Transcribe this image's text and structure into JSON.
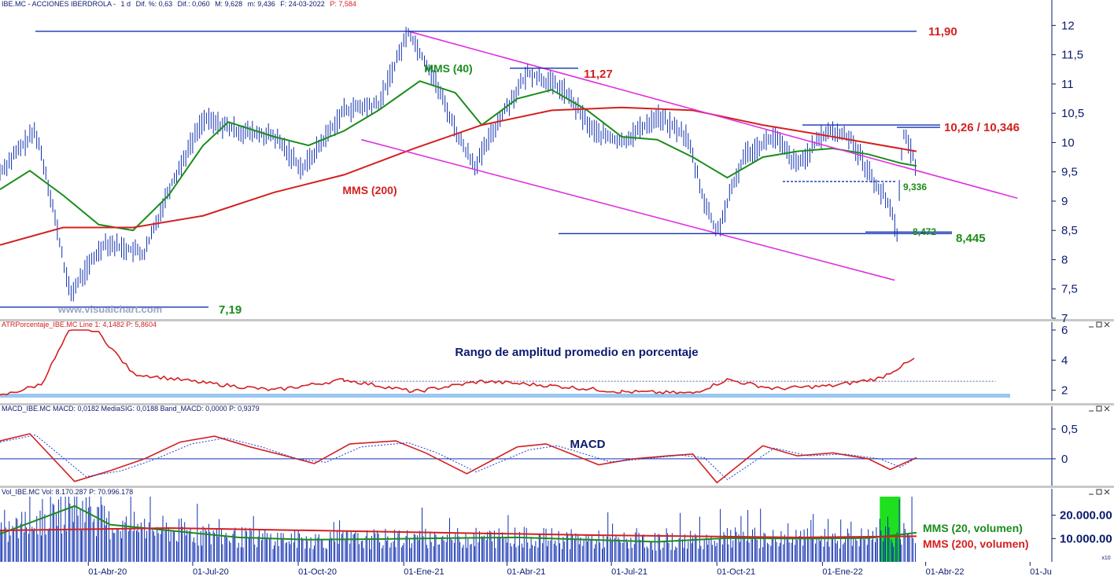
{
  "panels": {
    "price": {
      "header": {
        "symbol": "IBE.MC - ACCIONES IBERDROLA -",
        "period": "1 d",
        "dif_pct": "Dif. %: 0,63",
        "dif": "Dif.: 0,060",
        "max": "M: 9,628",
        "min": "m: 9,436",
        "date": "F: 24-03-2022",
        "last": "P: 7,584"
      },
      "watermark": "www.visualchart.com"
    },
    "atr": {
      "header": "ATRPorcentaje_IBE.MC Line 1: 4,1482 P: 5,8604",
      "title": "Rango de amplitud promedio en porcentaje"
    },
    "macd": {
      "header": "MACD_IBE.MC MACD: 0,0182 MediaSIG: 0,0188 Band_MACD: 0,0000 P: 0,9379",
      "title": "MACD"
    },
    "volume": {
      "header": "Vol_IBE.MC Vol: 8.170.287 P: 70.996.178",
      "unit_badge": "x10"
    }
  },
  "chart_data": [
    {
      "panel": "price",
      "type": "candlestick",
      "title": "",
      "y_ticks": [
        "7",
        "7,5",
        "8",
        "8,5",
        "9",
        "9,5",
        "10",
        "10,5",
        "11",
        "11,5",
        "12"
      ],
      "ylim": [
        7,
        12.3
      ],
      "x_ticks": [
        "01-Abr-20",
        "01-Jul-20",
        "01-Oct-20",
        "01-Ene-21",
        "01-Abr-21",
        "01-Jul-21",
        "01-Oct-21",
        "01-Ene-22",
        "01-Abr-22",
        "01-Ju"
      ],
      "xlim": [
        "2020-01-15",
        "2022-07-20"
      ],
      "series": [
        {
          "name": "MMS (40)",
          "color": "#1b8c1b",
          "points": [
            [
              "2020-01-15",
              9.2
            ],
            [
              "2020-02-10",
              9.52
            ],
            [
              "2020-03-10",
              9.1
            ],
            [
              "2020-04-10",
              8.6
            ],
            [
              "2020-05-10",
              8.5
            ],
            [
              "2020-06-10",
              9.1
            ],
            [
              "2020-07-10",
              9.95
            ],
            [
              "2020-08-01",
              10.35
            ],
            [
              "2020-09-10",
              10.1
            ],
            [
              "2020-10-10",
              9.95
            ],
            [
              "2020-11-10",
              10.2
            ],
            [
              "2020-12-10",
              10.55
            ],
            [
              "2021-01-15",
              11.05
            ],
            [
              "2021-02-15",
              10.85
            ],
            [
              "2021-03-10",
              10.3
            ],
            [
              "2021-04-10",
              10.75
            ],
            [
              "2021-05-10",
              10.9
            ],
            [
              "2021-06-10",
              10.55
            ],
            [
              "2021-07-10",
              10.1
            ],
            [
              "2021-08-10",
              10.05
            ],
            [
              "2021-09-10",
              9.75
            ],
            [
              "2021-10-10",
              9.4
            ],
            [
              "2021-11-10",
              9.75
            ],
            [
              "2021-12-10",
              9.85
            ],
            [
              "2022-01-10",
              9.9
            ],
            [
              "2022-02-10",
              9.8
            ],
            [
              "2022-03-10",
              9.65
            ],
            [
              "2022-03-24",
              9.6
            ]
          ]
        },
        {
          "name": "MMS (200)",
          "color": "#d42020",
          "points": [
            [
              "2020-01-15",
              8.25
            ],
            [
              "2020-03-10",
              8.55
            ],
            [
              "2020-05-10",
              8.55
            ],
            [
              "2020-07-10",
              8.75
            ],
            [
              "2020-09-10",
              9.15
            ],
            [
              "2020-11-10",
              9.45
            ],
            [
              "2021-01-10",
              9.9
            ],
            [
              "2021-03-10",
              10.3
            ],
            [
              "2021-05-10",
              10.55
            ],
            [
              "2021-07-10",
              10.6
            ],
            [
              "2021-09-10",
              10.55
            ],
            [
              "2021-11-10",
              10.3
            ],
            [
              "2022-01-10",
              10.1
            ],
            [
              "2022-03-24",
              9.85
            ]
          ]
        }
      ],
      "horizontal_levels": [
        {
          "label": "11,90",
          "value": 11.9,
          "color": "#d42020"
        },
        {
          "label": "11,27",
          "value": 11.27,
          "color": "#d42020"
        },
        {
          "label": "10,26 / 10,346",
          "value": 10.3,
          "color": "#d42020"
        },
        {
          "label": "9,336",
          "value": 9.336,
          "color": "#1b8c1b"
        },
        {
          "label": "8,472",
          "value": 8.472,
          "color": "#1b8c1b"
        },
        {
          "label": "8,445",
          "value": 8.445,
          "color": "#1b8c1b"
        },
        {
          "label": "7,19",
          "value": 7.19,
          "color": "#1b8c1b"
        }
      ],
      "trendlines": [
        {
          "from": [
            "2021-01-05",
            11.9
          ],
          "to": [
            "2022-06-20",
            9.05
          ]
        },
        {
          "from": [
            "2020-11-25",
            10.05
          ],
          "to": [
            "2022-03-05",
            7.65
          ]
        }
      ],
      "ohlc_samples": [
        [
          "2020-01-15",
          9.5
        ],
        [
          "2020-02-15",
          10.2
        ],
        [
          "2020-02-25",
          9.4
        ],
        [
          "2020-03-16",
          7.4
        ],
        [
          "2020-04-15",
          8.3
        ],
        [
          "2020-05-20",
          8.1
        ],
        [
          "2020-06-10",
          9.2
        ],
        [
          "2020-07-10",
          10.4
        ],
        [
          "2020-08-10",
          10.2
        ],
        [
          "2020-09-10",
          10.1
        ],
        [
          "2020-10-05",
          9.55
        ],
        [
          "2020-11-10",
          10.55
        ],
        [
          "2020-12-10",
          10.65
        ],
        [
          "2021-01-05",
          11.9
        ],
        [
          "2021-01-25",
          11.2
        ],
        [
          "2021-02-20",
          10.0
        ],
        [
          "2021-03-05",
          9.6
        ],
        [
          "2021-03-25",
          10.4
        ],
        [
          "2021-04-20",
          11.2
        ],
        [
          "2021-05-20",
          10.9
        ],
        [
          "2021-06-15",
          10.2
        ],
        [
          "2021-07-10",
          10.0
        ],
        [
          "2021-08-10",
          10.45
        ],
        [
          "2021-09-05",
          10.1
        ],
        [
          "2021-09-20",
          9.0
        ],
        [
          "2021-10-01",
          8.45
        ],
        [
          "2021-10-25",
          9.8
        ],
        [
          "2021-11-20",
          10.1
        ],
        [
          "2021-12-10",
          9.6
        ],
        [
          "2022-01-05",
          10.2
        ],
        [
          "2022-01-25",
          10.1
        ],
        [
          "2022-02-10",
          9.5
        ],
        [
          "2022-03-01",
          8.9
        ],
        [
          "2022-03-07",
          8.47
        ],
        [
          "2022-03-12",
          10.2
        ],
        [
          "2022-03-24",
          9.6
        ]
      ]
    },
    {
      "panel": "atr",
      "type": "line",
      "y_ticks": [
        "2",
        "4",
        "6"
      ],
      "ylim": [
        1.3,
        6
      ],
      "series": [
        {
          "name": "",
          "color": "#d42020",
          "points": [
            [
              "2020-01-15",
              1.6
            ],
            [
              "2020-02-20",
              2.4
            ],
            [
              "2020-03-20",
              6.6
            ],
            [
              "2020-04-10",
              5.8
            ],
            [
              "2020-05-10",
              3.1
            ],
            [
              "2020-07-10",
              2.5
            ],
            [
              "2020-09-10",
              2.0
            ],
            [
              "2020-11-10",
              2.7
            ],
            [
              "2021-01-10",
              1.9
            ],
            [
              "2021-03-10",
              2.6
            ],
            [
              "2021-05-10",
              2.3
            ],
            [
              "2021-07-10",
              1.9
            ],
            [
              "2021-09-10",
              1.8
            ],
            [
              "2021-10-10",
              2.7
            ],
            [
              "2021-11-20",
              2.1
            ],
            [
              "2022-01-10",
              2.3
            ],
            [
              "2022-02-20",
              2.8
            ],
            [
              "2022-03-24",
              4.15
            ]
          ]
        }
      ],
      "reference_level": 2.6
    },
    {
      "panel": "macd",
      "type": "line",
      "y_ticks": [
        "0",
        "0,5"
      ],
      "ylim": [
        -0.45,
        0.75
      ],
      "series": [
        {
          "name": "MACD",
          "color": "#d42020",
          "points": [
            [
              "2020-01-15",
              0.3
            ],
            [
              "2020-02-10",
              0.42
            ],
            [
              "2020-03-20",
              -0.38
            ],
            [
              "2020-04-20",
              -0.2
            ],
            [
              "2020-05-20",
              0.0
            ],
            [
              "2020-06-20",
              0.28
            ],
            [
              "2020-07-20",
              0.38
            ],
            [
              "2020-08-20",
              0.2
            ],
            [
              "2020-09-20",
              0.05
            ],
            [
              "2020-10-15",
              -0.08
            ],
            [
              "2020-11-15",
              0.25
            ],
            [
              "2020-12-25",
              0.3
            ],
            [
              "2021-01-20",
              0.1
            ],
            [
              "2021-02-25",
              -0.25
            ],
            [
              "2021-04-10",
              0.2
            ],
            [
              "2021-05-05",
              0.25
            ],
            [
              "2021-06-20",
              -0.1
            ],
            [
              "2021-07-20",
              0.0
            ],
            [
              "2021-08-20",
              0.05
            ],
            [
              "2021-09-10",
              0.08
            ],
            [
              "2021-10-01",
              -0.4
            ],
            [
              "2021-11-10",
              0.22
            ],
            [
              "2021-12-10",
              0.05
            ],
            [
              "2022-01-10",
              0.1
            ],
            [
              "2022-02-10",
              0.0
            ],
            [
              "2022-03-01",
              -0.18
            ],
            [
              "2022-03-24",
              0.02
            ]
          ]
        },
        {
          "name": "MediaSIG",
          "color": "#2040d0",
          "points": [
            [
              "2020-01-15",
              0.28
            ],
            [
              "2020-02-15",
              0.4
            ],
            [
              "2020-03-30",
              -0.3
            ],
            [
              "2020-04-30",
              -0.2
            ],
            [
              "2020-05-30",
              0.0
            ],
            [
              "2020-06-30",
              0.25
            ],
            [
              "2020-07-30",
              0.35
            ],
            [
              "2020-08-30",
              0.2
            ],
            [
              "2020-09-30",
              0.0
            ],
            [
              "2020-10-25",
              -0.06
            ],
            [
              "2020-11-25",
              0.2
            ],
            [
              "2021-01-05",
              0.27
            ],
            [
              "2021-01-30",
              0.1
            ],
            [
              "2021-03-05",
              -0.22
            ],
            [
              "2021-04-20",
              0.15
            ],
            [
              "2021-05-15",
              0.22
            ],
            [
              "2021-06-30",
              -0.05
            ],
            [
              "2021-07-30",
              0.0
            ],
            [
              "2021-08-30",
              0.06
            ],
            [
              "2021-09-20",
              0.02
            ],
            [
              "2021-10-10",
              -0.35
            ],
            [
              "2021-11-20",
              0.18
            ],
            [
              "2021-12-20",
              0.05
            ],
            [
              "2022-01-20",
              0.08
            ],
            [
              "2022-02-20",
              0.0
            ],
            [
              "2022-03-10",
              -0.14
            ],
            [
              "2022-03-24",
              0.02
            ]
          ]
        }
      ]
    },
    {
      "panel": "volume",
      "type": "bar",
      "y_ticks": [
        "10.000.00",
        "20.000.00"
      ],
      "ylim": [
        0,
        28000000
      ],
      "series": [
        {
          "name": "MMS (20, volumen)",
          "color": "#1b8c1b",
          "points": [
            [
              "2020-01-15",
              12000000
            ],
            [
              "2020-03-20",
              24000000
            ],
            [
              "2020-04-20",
              16000000
            ],
            [
              "2020-06-10",
              13500000
            ],
            [
              "2020-08-10",
              10500000
            ],
            [
              "2020-10-10",
              9500000
            ],
            [
              "2020-12-10",
              9800000
            ],
            [
              "2021-02-10",
              10200000
            ],
            [
              "2021-04-10",
              10500000
            ],
            [
              "2021-06-10",
              9500000
            ],
            [
              "2021-08-10",
              8600000
            ],
            [
              "2021-10-10",
              10200000
            ],
            [
              "2021-12-10",
              10000000
            ],
            [
              "2022-02-10",
              10200000
            ],
            [
              "2022-03-24",
              12500000
            ]
          ]
        },
        {
          "name": "MMS (200, volumen)",
          "color": "#d42020",
          "points": [
            [
              "2020-01-15",
              13500000
            ],
            [
              "2020-06-10",
              14500000
            ],
            [
              "2020-12-10",
              13000000
            ],
            [
              "2021-06-10",
              11500000
            ],
            [
              "2021-12-10",
              10500000
            ],
            [
              "2022-03-24",
              11000000
            ]
          ]
        }
      ],
      "highlight_range": [
        "2022-02-20",
        "2022-03-10"
      ]
    }
  ]
}
